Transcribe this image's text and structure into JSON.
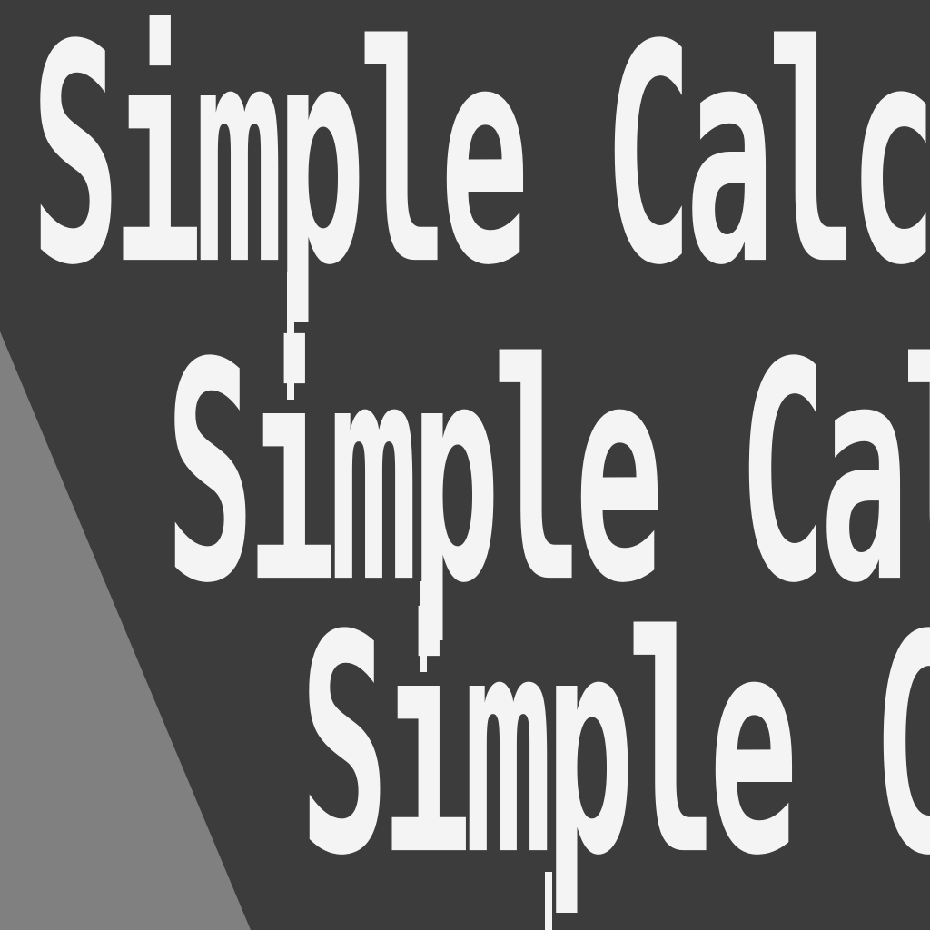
{
  "window": {
    "title_lines": [
      "Simple Calc",
      "Simple Calc",
      "Simple Calc"
    ]
  },
  "colors": {
    "background": "#3c3c3c",
    "wedge": "#808080",
    "text": "#f4f4f4"
  }
}
